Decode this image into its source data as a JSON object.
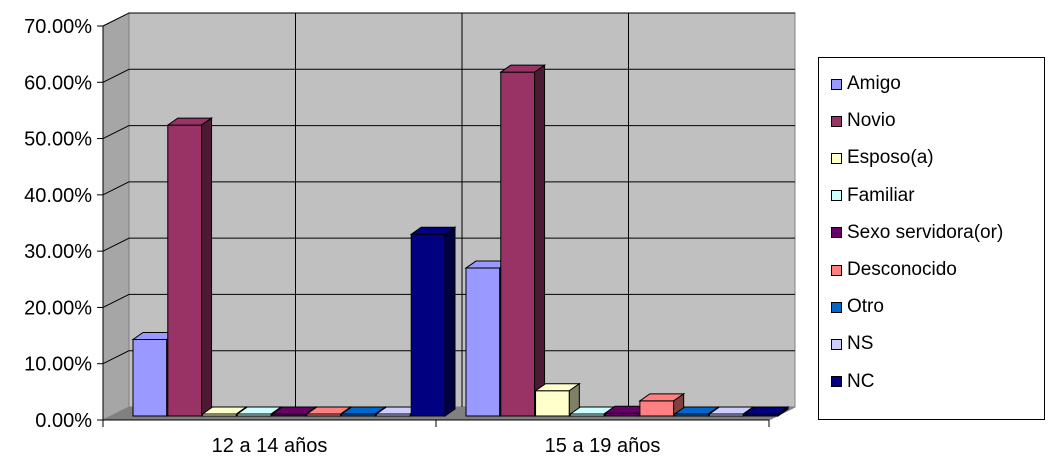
{
  "chart_data": {
    "type": "bar",
    "title": "",
    "xlabel": "",
    "ylabel": "",
    "categories": [
      "12 a 14 años",
      "15 a 19 años"
    ],
    "ylim": [
      0,
      70
    ],
    "ytick_values": [
      0,
      10,
      20,
      30,
      40,
      50,
      60,
      70
    ],
    "ytick_labels": [
      "0.00%",
      "10.00%",
      "20.00%",
      "30.00%",
      "40.00%",
      "50.00%",
      "60.00%",
      "70.00%"
    ],
    "grid": true,
    "style": "3d-clustered-column",
    "legend_position": "right",
    "series": [
      {
        "name": "Amigo",
        "values": [
          14.3,
          27.0
        ],
        "color": "#9999FF"
      },
      {
        "name": "Novio",
        "values": [
          52.4,
          61.8
        ],
        "color": "#993366"
      },
      {
        "name": "Esposo(a)",
        "values": [
          0.0,
          5.2
        ],
        "color": "#FFFFCC"
      },
      {
        "name": "Familiar",
        "values": [
          0.0,
          0.5
        ],
        "color": "#CCFFFF"
      },
      {
        "name": "Sexo servidora(or)",
        "values": [
          0.0,
          1.2
        ],
        "color": "#660066"
      },
      {
        "name": "Desconocido",
        "values": [
          0.0,
          3.4
        ],
        "color": "#FF8080"
      },
      {
        "name": "Otro",
        "values": [
          0.0,
          0.0
        ],
        "color": "#0066CC"
      },
      {
        "name": "NS",
        "values": [
          0.0,
          0.0
        ],
        "color": "#CCCCFF"
      },
      {
        "name": "NC",
        "values": [
          33.0,
          0.0
        ],
        "color": "#000080"
      }
    ]
  },
  "colors": {
    "wall": "#C0C0C0",
    "floor": "#808080",
    "side_wall": "#A6A6A6"
  }
}
